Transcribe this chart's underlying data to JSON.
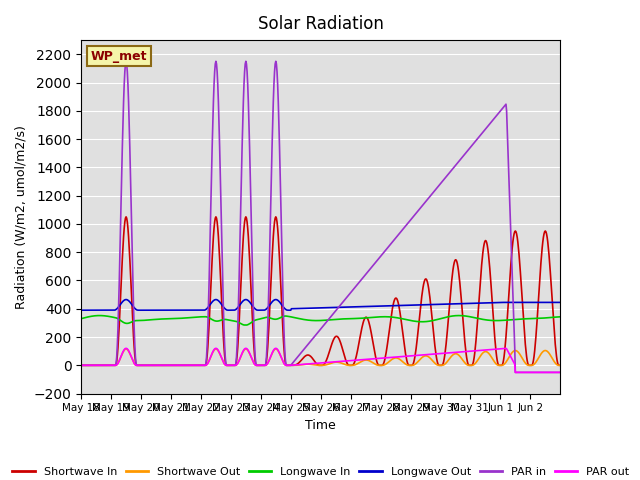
{
  "title": "Solar Radiation",
  "xlabel": "Time",
  "ylabel": "Radiation (W/m2, umol/m2/s)",
  "ylim": [
    -200,
    2300
  ],
  "yticks": [
    -200,
    0,
    200,
    400,
    600,
    800,
    1000,
    1200,
    1400,
    1600,
    1800,
    2000,
    2200
  ],
  "bg_color": "#e0e0e0",
  "fig_color": "#ffffff",
  "annotation_text": "WP_met",
  "annotation_bg": "#f5f5aa",
  "annotation_border": "#8b6914",
  "legend_entries": [
    "Shortwave In",
    "Shortwave Out",
    "Longwave In",
    "Longwave Out",
    "PAR in",
    "PAR out"
  ],
  "line_colors": [
    "#cc0000",
    "#ff9900",
    "#00cc00",
    "#0000cc",
    "#9933cc",
    "#ff00ff"
  ],
  "n_days": 16,
  "x_tick_labels": [
    "May 18",
    "May 19",
    "May 20",
    "May 21",
    "May 22",
    "May 23",
    "May 24",
    "May 25",
    "May 26",
    "May 27",
    "May 28",
    "May 29",
    "May 30",
    "May 31",
    "Jun 1",
    "Jun 2"
  ]
}
